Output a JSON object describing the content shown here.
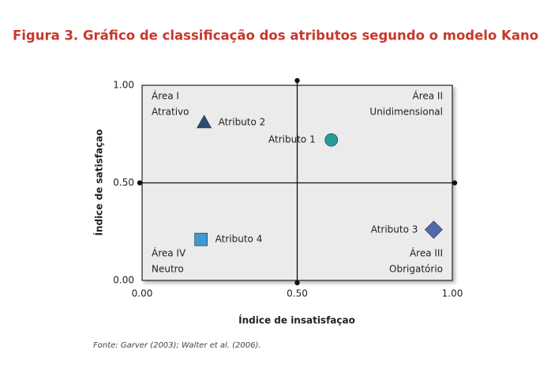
{
  "chart_data": {
    "type": "scatter",
    "title": "Figura 3. Gráfico de classificação dos atributos segundo o modelo Kano",
    "x_label": "Índice de insatisfaçao",
    "y_label": "Índice de satisfaçao",
    "source": "Fonte: Garver (2003); Walter et al. (2006).",
    "xlim": [
      0,
      1
    ],
    "ylim": [
      0,
      1
    ],
    "xticks": [
      {
        "value": 0,
        "label": "0.00"
      },
      {
        "value": 0.5,
        "label": "0.50"
      },
      {
        "value": 1,
        "label": "1.00"
      }
    ],
    "yticks": [
      {
        "value": 0,
        "label": "0.00"
      },
      {
        "value": 0.5,
        "label": "0.50"
      },
      {
        "value": 1,
        "label": "1.00"
      }
    ],
    "areas": [
      {
        "name": "Área I",
        "label": "Atrativo"
      },
      {
        "name": "Área II",
        "label": "Unidimensional"
      },
      {
        "name": "Área III",
        "label": "Obrigatório"
      },
      {
        "name": "Área IV",
        "label": "Neutro"
      }
    ],
    "series": [
      {
        "name": "Atributo 1",
        "marker": "circle",
        "color": "#279c9c",
        "x": [
          0.61
        ],
        "values": [
          0.72
        ]
      },
      {
        "name": "Atributo 2",
        "marker": "triangle",
        "color": "#2d4c72",
        "x": [
          0.2
        ],
        "values": [
          0.81
        ]
      },
      {
        "name": "Atributo 3",
        "marker": "diamond",
        "color": "#5468b0",
        "x": [
          0.94
        ],
        "values": [
          0.26
        ]
      },
      {
        "name": "Atributo 4",
        "marker": "square",
        "color": "#3f9bcb",
        "x": [
          0.19
        ],
        "values": [
          0.21
        ]
      }
    ]
  }
}
